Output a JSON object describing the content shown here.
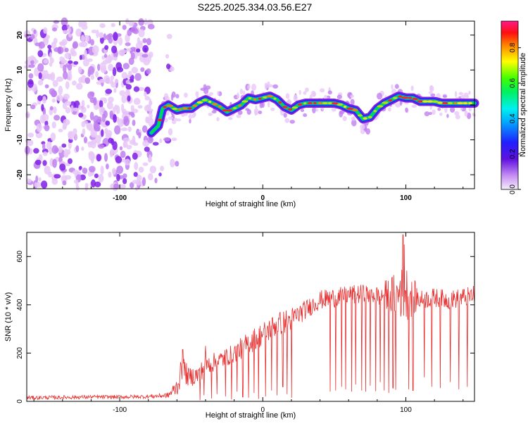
{
  "title": "S225.2025.334.03.56.E27",
  "chart_data": [
    {
      "type": "heatmap",
      "title": "S225.2025.334.03.56.E27",
      "xlabel": "Height of straight line (km)",
      "ylabel": "Frequency (Hz)",
      "xlim": [
        -165,
        148
      ],
      "ylim": [
        -24,
        24
      ],
      "xticks": [
        -100,
        0,
        100
      ],
      "yticks": [
        -20,
        -10,
        0,
        10,
        20
      ],
      "ridge_path": {
        "x": [
          -78,
          -73,
          -70,
          -66,
          -60,
          -55,
          -50,
          -45,
          -40,
          -35,
          -30,
          -25,
          -20,
          -15,
          -10,
          -5,
          0,
          5,
          10,
          15,
          20,
          25,
          30,
          35,
          40,
          45,
          50,
          55,
          60,
          65,
          70,
          75,
          80,
          85,
          90,
          95,
          100,
          105,
          110,
          115,
          120,
          125,
          130,
          135,
          140,
          148
        ],
        "y": [
          -8.0,
          -6.0,
          -1.0,
          0.0,
          -1.5,
          -1.0,
          -1.0,
          0.5,
          1.5,
          0.5,
          -0.5,
          -2.0,
          -1.0,
          0.0,
          2.0,
          1.5,
          2.0,
          2.5,
          1.5,
          -0.5,
          -1.5,
          0.0,
          0.5,
          0.5,
          0.5,
          0.5,
          0.5,
          0.0,
          -1.0,
          -1.5,
          -4.0,
          -3.5,
          -1.0,
          0.5,
          1.5,
          2.5,
          2.0,
          2.0,
          1.0,
          1.0,
          1.0,
          0.5,
          0.5,
          0.5,
          0.5,
          0.5
        ]
      },
      "noise_region_x": [
        -165,
        -60
      ],
      "colorbar": {
        "label": "Normalized spectral amplitude",
        "range": [
          0.0,
          0.95
        ],
        "ticks": [
          "0.0",
          "0.2",
          "0.4",
          "0.6",
          "0.8"
        ],
        "tick_values": [
          0.0,
          0.2,
          0.4,
          0.6,
          0.8
        ]
      },
      "colors": [
        "#e8c8f8",
        "#c080f0",
        "#8020e8",
        "#3020e0",
        "#0090ff",
        "#00e0e0",
        "#00e040",
        "#c0e000",
        "#ffe000",
        "#ff8000",
        "#ff2020",
        "#e01880"
      ]
    },
    {
      "type": "line",
      "title": "",
      "xlabel": "Height of straight line (km)",
      "ylabel": "SNR (10 * v/v)",
      "xlim": [
        -165,
        148
      ],
      "ylim": [
        0,
        700
      ],
      "xticks": [
        -100,
        0,
        100
      ],
      "yticks": [
        0,
        200,
        400,
        600
      ],
      "series": [
        {
          "name": "SNR",
          "color": "#e83030",
          "envelope": {
            "x": [
              -165,
              -120,
              -100,
              -80,
              -66,
              -60,
              -56,
              -52,
              -45,
              -40,
              -30,
              -20,
              -10,
              0,
              10,
              20,
              30,
              40,
              50,
              60,
              70,
              80,
              90,
              100,
              110,
              120,
              130,
              140,
              148
            ],
            "baseline": [
              15,
              18,
              18,
              20,
              25,
              60,
              140,
              100,
              110,
              150,
              170,
              200,
              240,
              280,
              320,
              340,
              380,
              420,
              430,
              440,
              445,
              440,
              440,
              450,
              420,
              430,
              420,
              430,
              440
            ],
            "amplitude": [
              8,
              8,
              8,
              8,
              12,
              40,
              60,
              40,
              40,
              40,
              40,
              40,
              50,
              50,
              50,
              50,
              40,
              40,
              40,
              40,
              40,
              40,
              80,
              120,
              40,
              40,
              40,
              40,
              40
            ]
          },
          "dropouts": {
            "x": [
              -44,
              -41,
              -36,
              -32,
              -26,
              -22,
              -18,
              -14,
              -10,
              -6,
              -3,
              2,
              6,
              10,
              14,
              17,
              20,
              47,
              51,
              55,
              58,
              62,
              65,
              69,
              72,
              75,
              79,
              82,
              85,
              88,
              91,
              93,
              96,
              99,
              102,
              105,
              113,
              118,
              124,
              131,
              137,
              143
            ],
            "y": [
              5,
              25,
              12,
              30,
              20,
              8,
              40,
              18,
              15,
              35,
              10,
              20,
              45,
              25,
              60,
              30,
              15,
              40,
              45,
              60,
              50,
              40,
              70,
              45,
              40,
              65,
              42,
              80,
              45,
              35,
              55,
              48,
              60,
              40,
              50,
              45,
              100,
              60,
              55,
              80,
              50,
              60
            ]
          },
          "peaks": {
            "x": [
              -56,
              -40,
              96,
              98,
              99
            ],
            "y": [
              215,
              230,
              500,
              690,
              650
            ]
          }
        }
      ]
    }
  ]
}
